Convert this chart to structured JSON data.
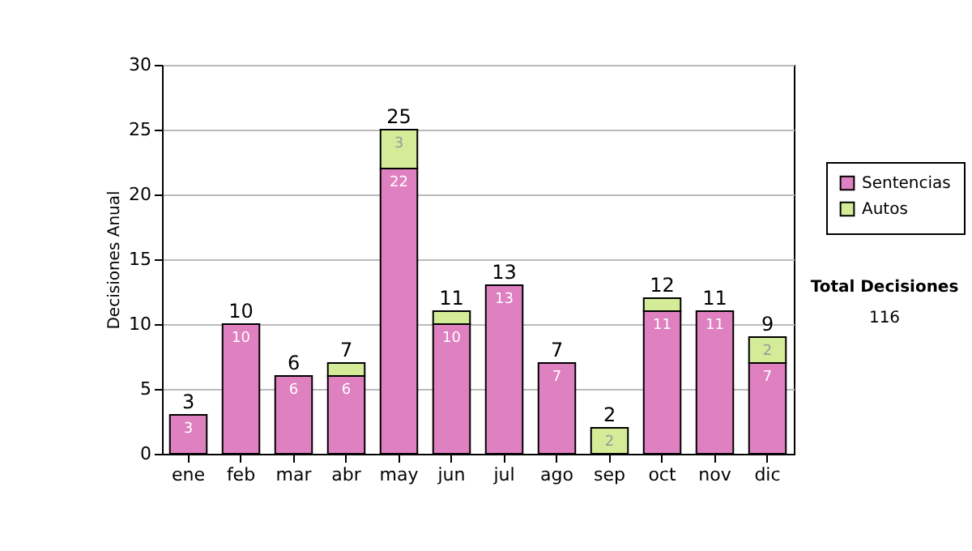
{
  "chart_data": {
    "type": "bar",
    "stacked": true,
    "ylabel": "Decisiones Anual",
    "categories": [
      "ene",
      "feb",
      "mar",
      "abr",
      "may",
      "jun",
      "jul",
      "ago",
      "sep",
      "oct",
      "nov",
      "dic"
    ],
    "series": [
      {
        "name": "Sentencias",
        "color": "#df80c0",
        "values": [
          3,
          10,
          6,
          6,
          22,
          10,
          13,
          7,
          0,
          11,
          11,
          7
        ],
        "value_labels": [
          "3",
          "10",
          "6",
          "6",
          "22",
          "10",
          "13",
          "7",
          null,
          "11",
          "11",
          "7"
        ]
      },
      {
        "name": "Autos",
        "color": "#d4ec98",
        "values": [
          0,
          0,
          0,
          1,
          3,
          1,
          0,
          0,
          2,
          1,
          0,
          2
        ],
        "value_labels": [
          null,
          null,
          null,
          null,
          "3",
          null,
          null,
          null,
          "2",
          null,
          null,
          "2"
        ]
      }
    ],
    "totals": [
      "3",
      "10",
      "6",
      "7",
      "25",
      "11",
      "13",
      "7",
      "2",
      "12",
      "11",
      "9"
    ],
    "ylim": [
      0,
      30
    ],
    "yticks": [
      0,
      5,
      10,
      15,
      20,
      25,
      30
    ],
    "grid": "y",
    "legend": "right",
    "annotations": [
      "Total Decisiones",
      "116"
    ]
  }
}
